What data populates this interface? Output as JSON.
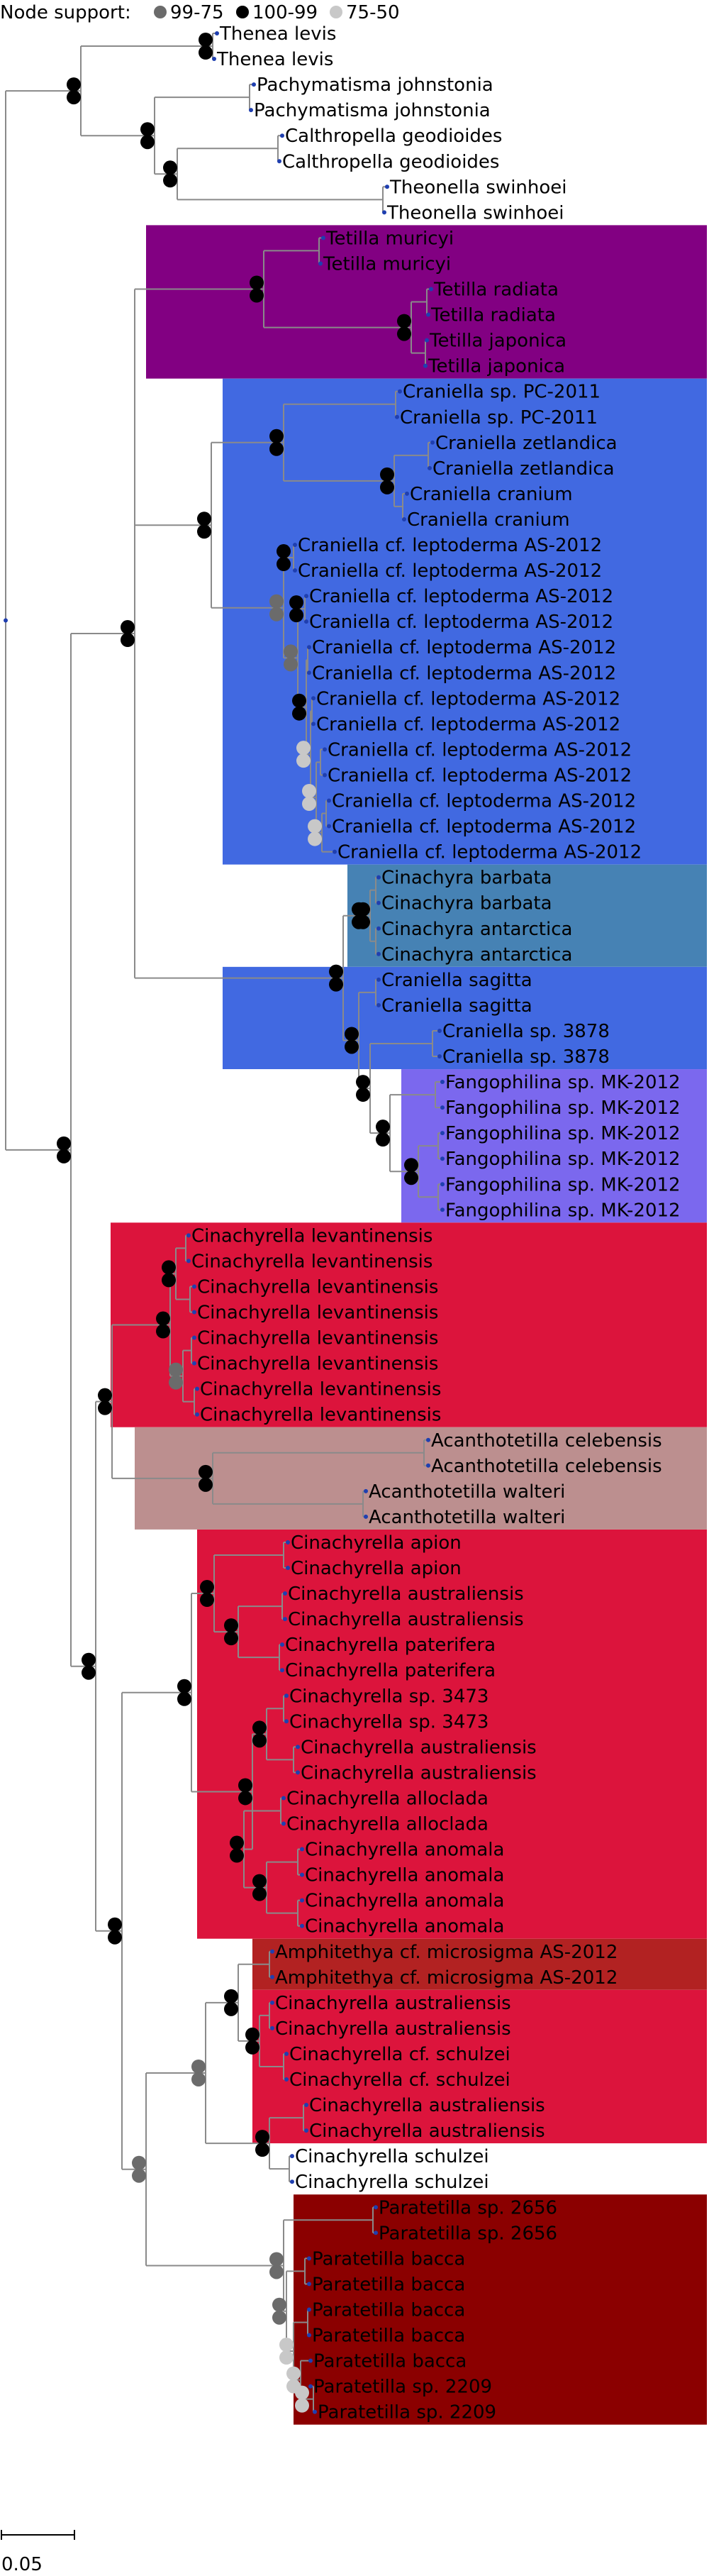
{
  "legend": {
    "title": "Node support:",
    "items": [
      {
        "label": "99-75",
        "color": "#6b6b6b"
      },
      {
        "label": "100-99",
        "color": "#000000"
      },
      {
        "label": "75-50",
        "color": "#c8c8c8"
      }
    ]
  },
  "scale_bar": {
    "label": "0.05"
  },
  "clade_colors": {
    "tetilla": "#820082",
    "craniella": "#4169e1",
    "cinachyra": "#4682b4",
    "fangophilina": "#7b68ee",
    "cinachyrella": "#dc143c",
    "acanthotetilla": "#bc8f8f",
    "amphitethya": "#b22222",
    "paratetilla": "#8b0000"
  },
  "taxa": [
    "Thenea levis",
    "Thenea levis",
    "Pachymatisma johnstonia",
    "Pachymatisma johnstonia",
    "Calthropella geodioides",
    "Calthropella geodioides",
    "Theonella swinhoei",
    "Theonella swinhoei",
    "Tetilla muricyi",
    "Tetilla muricyi",
    "Tetilla radiata",
    "Tetilla radiata",
    "Tetilla japonica",
    "Tetilla japonica",
    "Craniella sp. PC-2011",
    "Craniella sp. PC-2011",
    "Craniella zetlandica",
    "Craniella zetlandica",
    "Craniella cranium",
    "Craniella cranium",
    "Craniella cf. leptoderma AS-2012",
    "Craniella cf. leptoderma AS-2012",
    "Craniella cf. leptoderma AS-2012",
    "Craniella cf. leptoderma AS-2012",
    "Craniella cf. leptoderma AS-2012",
    "Craniella cf. leptoderma AS-2012",
    "Craniella cf. leptoderma AS-2012",
    "Craniella cf. leptoderma AS-2012",
    "Craniella cf. leptoderma AS-2012",
    "Craniella cf. leptoderma AS-2012",
    "Craniella cf. leptoderma AS-2012",
    "Craniella cf. leptoderma AS-2012",
    "Craniella cf. leptoderma AS-2012",
    "Cinachyra barbata",
    "Cinachyra barbata",
    "Cinachyra antarctica",
    "Cinachyra antarctica",
    "Craniella sagitta",
    "Craniella sagitta",
    "Craniella sp. 3878",
    "Craniella sp. 3878",
    "Fangophilina sp. MK-2012",
    "Fangophilina sp. MK-2012",
    "Fangophilina sp. MK-2012",
    "Fangophilina sp. MK-2012",
    "Fangophilina sp. MK-2012",
    "Fangophilina sp. MK-2012",
    "Cinachyrella levantinensis",
    "Cinachyrella levantinensis",
    "Cinachyrella levantinensis",
    "Cinachyrella levantinensis",
    "Cinachyrella levantinensis",
    "Cinachyrella levantinensis",
    "Cinachyrella levantinensis",
    "Cinachyrella levantinensis",
    "Acanthotetilla celebensis",
    "Acanthotetilla celebensis",
    "Acanthotetilla walteri",
    "Acanthotetilla walteri",
    "Cinachyrella apion",
    "Cinachyrella apion",
    "Cinachyrella australiensis",
    "Cinachyrella australiensis",
    "Cinachyrella paterifera",
    "Cinachyrella paterifera",
    "Cinachyrella sp. 3473",
    "Cinachyrella sp. 3473",
    "Cinachyrella australiensis",
    "Cinachyrella australiensis",
    "Cinachyrella alloclada",
    "Cinachyrella alloclada",
    "Cinachyrella anomala",
    "Cinachyrella anomala",
    "Cinachyrella anomala",
    "Cinachyrella anomala",
    "Amphitethya cf. microsigma AS-2012",
    "Amphitethya cf. microsigma AS-2012",
    "Cinachyrella australiensis",
    "Cinachyrella australiensis",
    "Cinachyrella cf. schulzei",
    "Cinachyrella cf. schulzei",
    "Cinachyrella australiensis",
    "Cinachyrella australiensis",
    "Cinachyrella schulzei",
    "Cinachyrella schulzei",
    "Paratetilla sp. 2656",
    "Paratetilla sp. 2656",
    "Paratetilla bacca",
    "Paratetilla bacca",
    "Paratetilla bacca",
    "Paratetilla bacca",
    "Paratetilla bacca",
    "Paratetilla sp. 2209",
    "Paratetilla sp. 2209"
  ]
}
